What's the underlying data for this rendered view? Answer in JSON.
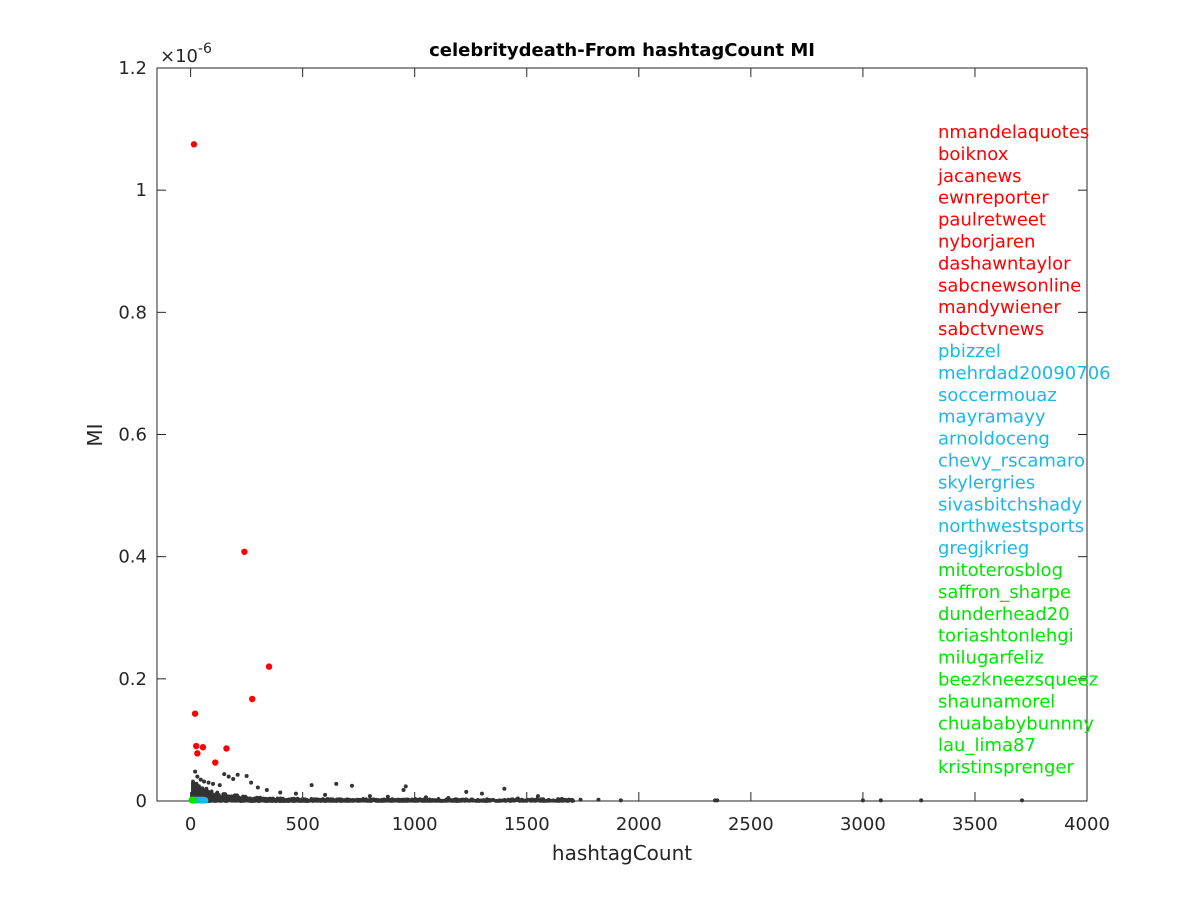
{
  "chart_data": {
    "type": "scatter",
    "title": "celebritydeath-From hashtagCount MI",
    "xlabel": "hashtagCount",
    "ylabel": "MI",
    "exponent_label": "×10",
    "exponent_power": "-6",
    "xlim": [
      -150,
      4000
    ],
    "ylim": [
      0,
      1.2e-06
    ],
    "xticks": [
      0,
      500,
      1000,
      1500,
      2000,
      2500,
      3000,
      3500,
      4000
    ],
    "xtick_labels": [
      "0",
      "500",
      "1000",
      "1500",
      "2000",
      "2500",
      "3000",
      "3500",
      "4000"
    ],
    "yticks": [
      0,
      2e-07,
      4e-07,
      6e-07,
      8e-07,
      1e-06,
      1.2e-06
    ],
    "ytick_labels": [
      "0",
      "0.2",
      "0.4",
      "0.6",
      "0.8",
      "1",
      "1.2"
    ],
    "grid": false,
    "colors": {
      "red": "#ff0000",
      "cyan": "#1ab8ea",
      "green": "#00e600",
      "gray": "#333333"
    },
    "series": [
      {
        "group": "red",
        "color": "#ff0000",
        "points": [
          {
            "x": 15,
            "y": 1.075e-06
          },
          {
            "x": 240,
            "y": 4.08e-07
          },
          {
            "x": 350,
            "y": 2.2e-07
          },
          {
            "x": 275,
            "y": 1.67e-07
          },
          {
            "x": 20,
            "y": 1.43e-07
          },
          {
            "x": 25,
            "y": 9e-08
          },
          {
            "x": 55,
            "y": 8.8e-08
          },
          {
            "x": 160,
            "y": 8.6e-08
          },
          {
            "x": 30,
            "y": 7.8e-08
          },
          {
            "x": 110,
            "y": 6.3e-08
          }
        ],
        "labels": [
          "nmandelaquotes",
          "boiknox",
          "jacanews",
          "ewnreporter",
          "paulretweet",
          "nyborjaren",
          "dashawntaylor",
          "sabcnewsonline",
          "mandywiener",
          "sabctvnews"
        ]
      },
      {
        "group": "cyan",
        "color": "#1ab8ea",
        "points": [
          {
            "x": 20,
            "y": 2e-09
          },
          {
            "x": 30,
            "y": 2e-09
          },
          {
            "x": 40,
            "y": 2e-09
          },
          {
            "x": 50,
            "y": 2e-09
          },
          {
            "x": 60,
            "y": 2e-09
          },
          {
            "x": 25,
            "y": 1e-09
          },
          {
            "x": 35,
            "y": 1e-09
          },
          {
            "x": 45,
            "y": 1e-09
          },
          {
            "x": 55,
            "y": 1e-09
          },
          {
            "x": 65,
            "y": 1e-09
          }
        ],
        "labels": [
          "pbizzel",
          "mehrdad20090706",
          "soccermouaz",
          "mayramayy",
          "arnoldoceng",
          "chevy_rscamaro",
          "skylergries",
          "sivasbitchshady",
          "northwestsports",
          "gregjkrieg"
        ]
      },
      {
        "group": "green",
        "color": "#00e600",
        "points": [
          {
            "x": 5,
            "y": 2e-09
          },
          {
            "x": 8,
            "y": 2e-09
          },
          {
            "x": 10,
            "y": 2e-09
          },
          {
            "x": 12,
            "y": 2e-09
          },
          {
            "x": 14,
            "y": 1e-09
          },
          {
            "x": 6,
            "y": 1e-09
          },
          {
            "x": 9,
            "y": 1e-09
          },
          {
            "x": 11,
            "y": 1e-09
          },
          {
            "x": 13,
            "y": 1e-09
          },
          {
            "x": 15,
            "y": 1e-09
          }
        ],
        "labels": [
          "mitoterosblog",
          "saffron_sharpe",
          "dunderhead20",
          "toriashtonlehgi",
          "milugarfeliz",
          "beezkneezsqueez",
          "shaunamorel",
          "chuababybunnny",
          "lau_lima87",
          "kristinsprenger"
        ]
      },
      {
        "group": "gray",
        "color": "#333333",
        "points": [
          {
            "x": 20,
            "y": 4.8e-08
          },
          {
            "x": 30,
            "y": 4e-08
          },
          {
            "x": 45,
            "y": 3.5e-08
          },
          {
            "x": 60,
            "y": 3.2e-08
          },
          {
            "x": 80,
            "y": 3e-08
          },
          {
            "x": 100,
            "y": 2.8e-08
          },
          {
            "x": 130,
            "y": 2.6e-08
          },
          {
            "x": 150,
            "y": 4.4e-08
          },
          {
            "x": 170,
            "y": 4e-08
          },
          {
            "x": 190,
            "y": 3.6e-08
          },
          {
            "x": 210,
            "y": 4.3e-08
          },
          {
            "x": 250,
            "y": 4.1e-08
          },
          {
            "x": 270,
            "y": 3e-08
          },
          {
            "x": 300,
            "y": 2.2e-08
          },
          {
            "x": 340,
            "y": 1.8e-08
          },
          {
            "x": 400,
            "y": 1.4e-08
          },
          {
            "x": 470,
            "y": 1.2e-08
          },
          {
            "x": 540,
            "y": 2.6e-08
          },
          {
            "x": 600,
            "y": 1e-08
          },
          {
            "x": 650,
            "y": 2.8e-08
          },
          {
            "x": 720,
            "y": 2.5e-08
          },
          {
            "x": 800,
            "y": 8e-09
          },
          {
            "x": 880,
            "y": 7e-09
          },
          {
            "x": 950,
            "y": 1.8e-08
          },
          {
            "x": 960,
            "y": 2.4e-08
          },
          {
            "x": 1050,
            "y": 6e-09
          },
          {
            "x": 1150,
            "y": 5e-09
          },
          {
            "x": 1230,
            "y": 1.5e-08
          },
          {
            "x": 1300,
            "y": 1.2e-08
          },
          {
            "x": 1400,
            "y": 2e-08
          },
          {
            "x": 1460,
            "y": 4e-09
          },
          {
            "x": 1550,
            "y": 8e-09
          },
          {
            "x": 1640,
            "y": 3e-09
          },
          {
            "x": 1740,
            "y": 2e-09
          },
          {
            "x": 1820,
            "y": 2e-09
          },
          {
            "x": 1920,
            "y": 1e-09
          },
          {
            "x": 2340,
            "y": 1e-09
          },
          {
            "x": 2350,
            "y": 1e-09
          },
          {
            "x": 3000,
            "y": 1e-09
          },
          {
            "x": 3080,
            "y": 1e-09
          },
          {
            "x": 3260,
            "y": 1e-09
          },
          {
            "x": 3710,
            "y": 1e-09
          }
        ]
      }
    ]
  }
}
